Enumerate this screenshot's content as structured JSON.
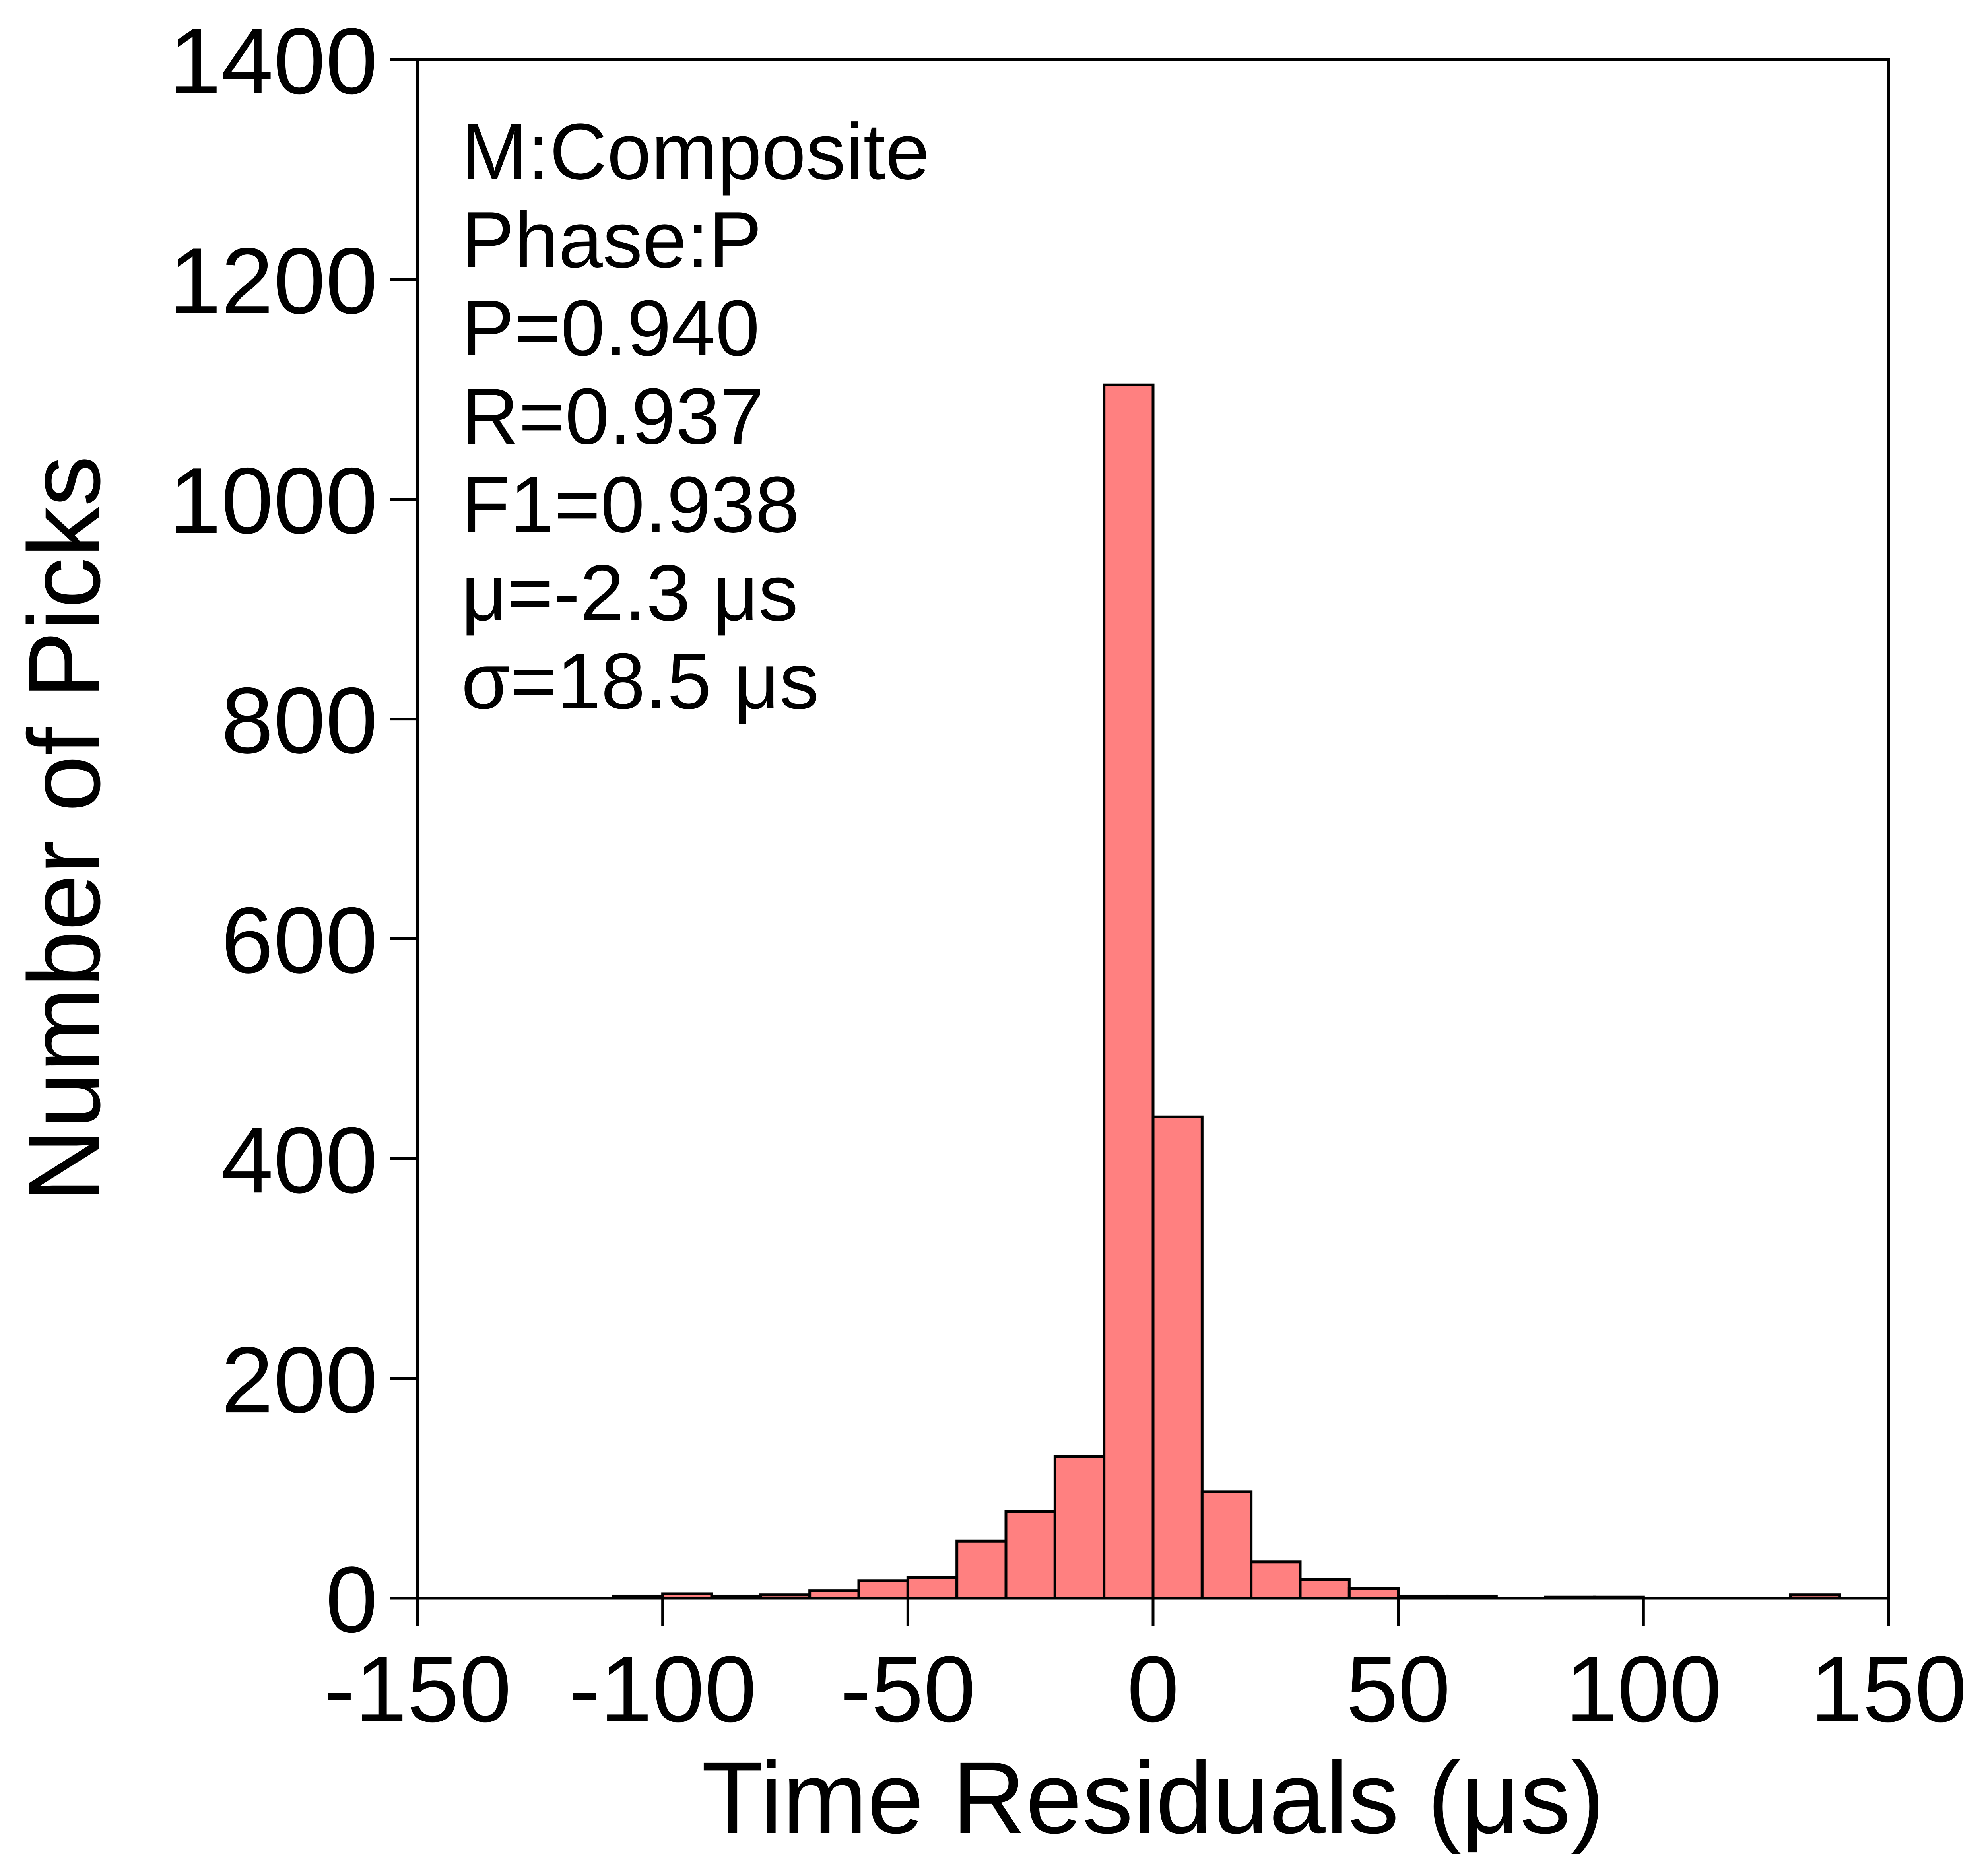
{
  "chart_data": {
    "type": "bar",
    "xlabel": "Time Residuals (μs)",
    "ylabel": "Number of Picks",
    "xlim": [
      -150,
      150
    ],
    "ylim": [
      0,
      1400
    ],
    "x_ticks": [
      -150,
      -100,
      -50,
      0,
      50,
      100,
      150
    ],
    "y_ticks": [
      0,
      200,
      400,
      600,
      800,
      1000,
      1200,
      1400
    ],
    "bins": [
      {
        "start": -110,
        "end": -100,
        "count": 2
      },
      {
        "start": -100,
        "end": -90,
        "count": 4
      },
      {
        "start": -90,
        "end": -80,
        "count": 2
      },
      {
        "start": -80,
        "end": -70,
        "count": 3
      },
      {
        "start": -70,
        "end": -60,
        "count": 7
      },
      {
        "start": -60,
        "end": -50,
        "count": 16
      },
      {
        "start": -50,
        "end": -40,
        "count": 19
      },
      {
        "start": -40,
        "end": -30,
        "count": 52
      },
      {
        "start": -30,
        "end": -20,
        "count": 79
      },
      {
        "start": -20,
        "end": -10,
        "count": 129
      },
      {
        "start": -10,
        "end": 0,
        "count": 1104
      },
      {
        "start": 0,
        "end": 10,
        "count": 438
      },
      {
        "start": 10,
        "end": 20,
        "count": 97
      },
      {
        "start": 20,
        "end": 30,
        "count": 33
      },
      {
        "start": 30,
        "end": 40,
        "count": 17
      },
      {
        "start": 40,
        "end": 50,
        "count": 9
      },
      {
        "start": 50,
        "end": 60,
        "count": 2
      },
      {
        "start": 60,
        "end": 70,
        "count": 2
      },
      {
        "start": 80,
        "end": 90,
        "count": 1
      },
      {
        "start": 90,
        "end": 100,
        "count": 1
      },
      {
        "start": 130,
        "end": 140,
        "count": 3
      }
    ],
    "grid": false,
    "legend": "none",
    "annotations": [
      "M:Composite",
      "Phase:P",
      "P=0.940",
      "R=0.937",
      "F1=0.938",
      "μ=-2.3 μs",
      "σ=18.5 μs"
    ],
    "colors": {
      "bar_fill": "#ff8080",
      "bar_edge": "#000000",
      "axis": "#000000"
    }
  }
}
